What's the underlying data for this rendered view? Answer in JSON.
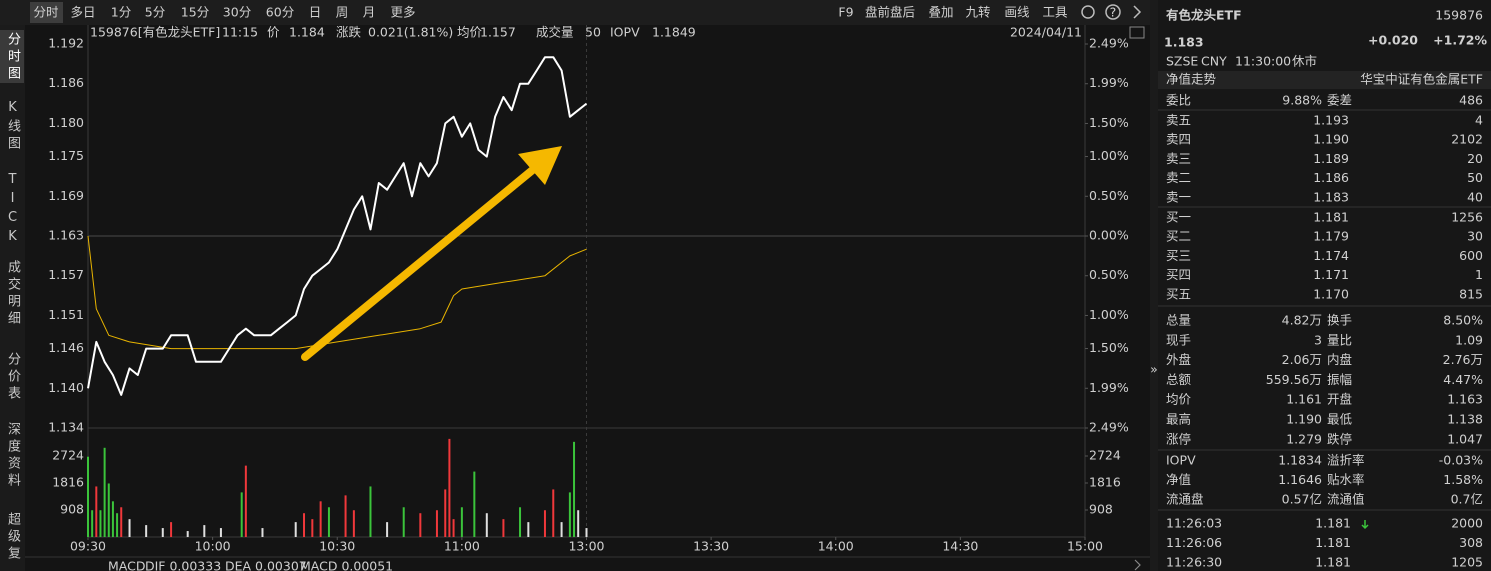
{
  "toolbar": {
    "tabs": [
      "分时",
      "多日",
      "1分",
      "5分",
      "15分",
      "30分",
      "60分",
      "日",
      "周",
      "月",
      "更多"
    ],
    "tools": [
      "F9",
      "盘前盘后",
      "叠加",
      "九转",
      "画线",
      "工具"
    ]
  },
  "sidebar": [
    "分时图",
    "K线图",
    "TICK",
    "成交明细",
    "分价表",
    "深度资料",
    "超级复"
  ],
  "chart": {
    "header": [
      {
        "text": "159876[有色龙头ETF]",
        "color": "#d0d0d0"
      },
      {
        "text": "11:15",
        "color": "#4fc3f7"
      },
      {
        "text": "价",
        "color": "#d0d0d0"
      },
      {
        "text": "1.184",
        "color": "#f0383b"
      },
      {
        "text": "涨跌",
        "color": "#d0d0d0"
      },
      {
        "text": "0.021(1.81%)",
        "color": "#f0383b"
      },
      {
        "text": "均价",
        "color": "#d0d0d0"
      },
      {
        "text": "1.157",
        "color": "#3bc43b"
      },
      {
        "text": "成交量",
        "color": "#d0d0d0"
      },
      {
        "text": "50",
        "color": "#d0d0d0"
      },
      {
        "text": "IOPV",
        "color": "#d0d0d0"
      },
      {
        "text": "1.1849",
        "color": "#f0383b"
      }
    ],
    "date": "2024/04/11",
    "ylim": [
      1.134,
      1.192
    ],
    "yticks": [
      1.192,
      1.186,
      1.18,
      1.175,
      1.169,
      1.163,
      1.157,
      1.151,
      1.146,
      1.14,
      1.134
    ],
    "yticks_labels": [
      "1.192",
      "1.186",
      "1.180",
      "1.175",
      "1.169",
      "1.163",
      "1.157",
      "1.151",
      "1.146",
      "1.140",
      "1.134"
    ],
    "pct_labels": [
      {
        "label": "2.49%",
        "color": "#f0383b"
      },
      {
        "label": "1.99%",
        "color": "#f0383b"
      },
      {
        "label": "1.50%",
        "color": "#f0383b"
      },
      {
        "label": "1.00%",
        "color": "#f0383b"
      },
      {
        "label": "0.50%",
        "color": "#f0383b"
      },
      {
        "label": "0.00%",
        "color": "#b8b8b8"
      },
      {
        "label": "0.50%",
        "color": "#3bc43b"
      },
      {
        "label": "1.00%",
        "color": "#3bc43b"
      },
      {
        "label": "1.50%",
        "color": "#3bc43b"
      },
      {
        "label": "1.99%",
        "color": "#3bc43b"
      },
      {
        "label": "2.49%",
        "color": "#3bc43b"
      }
    ],
    "xlim": [
      0,
      240
    ],
    "xticks": [
      {
        "value": 0,
        "label": "09:30"
      },
      {
        "value": 30,
        "label": "10:00"
      },
      {
        "value": 60,
        "label": "10:30"
      },
      {
        "value": 90,
        "label": "11:00"
      },
      {
        "value": 120,
        "label": "13:00"
      },
      {
        "value": 150,
        "label": "13:30"
      },
      {
        "value": 180,
        "label": "14:00"
      },
      {
        "value": 210,
        "label": "14:30"
      },
      {
        "value": 240,
        "label": "15:00"
      }
    ],
    "price_line": {
      "color": "#ffffff",
      "x": [
        0,
        2,
        4,
        6,
        8,
        10,
        12,
        14,
        16,
        18,
        20,
        22,
        24,
        26,
        28,
        30,
        32,
        34,
        36,
        38,
        40,
        42,
        44,
        46,
        48,
        50,
        52,
        54,
        56,
        58,
        60,
        62,
        64,
        66,
        68,
        70,
        72,
        74,
        76,
        78,
        80,
        82,
        84,
        86,
        88,
        90,
        92,
        94,
        96,
        98,
        100,
        102,
        104,
        106,
        108,
        110,
        112,
        114,
        116,
        118,
        120
      ],
      "values": [
        1.14,
        1.147,
        1.144,
        1.142,
        1.139,
        1.143,
        1.142,
        1.146,
        1.146,
        1.146,
        1.148,
        1.148,
        1.148,
        1.144,
        1.144,
        1.144,
        1.144,
        1.146,
        1.148,
        1.149,
        1.148,
        1.148,
        1.148,
        1.149,
        1.15,
        1.151,
        1.155,
        1.157,
        1.158,
        1.159,
        1.161,
        1.164,
        1.167,
        1.169,
        1.164,
        1.171,
        1.17,
        1.172,
        1.174,
        1.169,
        1.174,
        1.172,
        1.174,
        1.18,
        1.181,
        1.178,
        1.18,
        1.176,
        1.175,
        1.181,
        1.184,
        1.182,
        1.186,
        1.186,
        1.188,
        1.19,
        1.19,
        1.188,
        1.181,
        1.182,
        1.183
      ]
    },
    "avg_line": {
      "color": "#e8b400",
      "x": [
        0,
        2,
        5,
        10,
        20,
        30,
        40,
        50,
        60,
        70,
        80,
        85,
        88,
        90,
        100,
        110,
        116,
        120
      ],
      "values": [
        1.163,
        1.152,
        1.148,
        1.147,
        1.146,
        1.146,
        1.146,
        1.146,
        1.147,
        1.148,
        1.149,
        1.15,
        1.154,
        1.155,
        1.156,
        1.157,
        1.16,
        1.161
      ]
    },
    "volume": {
      "ylim": [
        0,
        3632
      ],
      "yticks": [
        908,
        1816,
        2724
      ],
      "x": [
        0,
        1,
        2,
        3,
        4,
        5,
        6,
        7,
        8,
        10,
        14,
        18,
        20,
        24,
        28,
        32,
        37,
        38,
        42,
        50,
        52,
        54,
        56,
        58,
        62,
        64,
        68,
        72,
        76,
        80,
        84,
        86,
        87,
        88,
        90,
        93,
        96,
        100,
        104,
        106,
        110,
        112,
        114,
        116,
        117,
        118,
        120
      ],
      "values": [
        2700,
        900,
        1700,
        900,
        3000,
        1800,
        1200,
        800,
        1000,
        600,
        400,
        300,
        500,
        200,
        400,
        300,
        1500,
        2400,
        300,
        500,
        800,
        600,
        1200,
        1000,
        1400,
        900,
        1700,
        500,
        1000,
        800,
        900,
        1600,
        3300,
        600,
        1000,
        2200,
        800,
        600,
        1000,
        500,
        900,
        1600,
        500,
        1500,
        3200,
        900,
        300
      ],
      "colors": [
        "#3bc43b",
        "#3bc43b",
        "#f0383b",
        "#3bc43b",
        "#3bc43b",
        "#3bc43b",
        "#3bc43b",
        "#3bc43b",
        "#f0383b",
        "#e0e0e0",
        "#e0e0e0",
        "#e0e0e0",
        "#f0383b",
        "#e0e0e0",
        "#e0e0e0",
        "#e0e0e0",
        "#3bc43b",
        "#f0383b",
        "#e0e0e0",
        "#e0e0e0",
        "#f0383b",
        "#f0383b",
        "#f0383b",
        "#3bc43b",
        "#f0383b",
        "#f0383b",
        "#3bc43b",
        "#e0e0e0",
        "#3bc43b",
        "#f0383b",
        "#f0383b",
        "#f0383b",
        "#f0383b",
        "#f0383b",
        "#3bc43b",
        "#3bc43b",
        "#e0e0e0",
        "#f0383b",
        "#3bc43b",
        "#e0e0e0",
        "#f0383b",
        "#f0383b",
        "#e0e0e0",
        "#3bc43b",
        "#3bc43b",
        "#e0e0e0",
        "#e0e0e0"
      ]
    },
    "macd": [
      {
        "text": "MACD",
        "color": "#d0d0d0"
      },
      {
        "text": "DIF 0.00333",
        "color": "#d0d0d0"
      },
      {
        "text": "DEA 0.00307",
        "color": "#e8b400"
      },
      {
        "text": "MACD 0.00051",
        "color": "#e060c0"
      }
    ]
  },
  "quote": {
    "name": "有色龙头ETF",
    "code": "159876",
    "price": "1.183",
    "change": "+0.020",
    "change_pct": "+1.72%",
    "meta": [
      "SZSE",
      "CNY",
      "11:30:00",
      "休市"
    ],
    "nav_title": "净值走势",
    "fund": "华宝中证有色金属ETF",
    "ratio": [
      "委比",
      "9.88%",
      "委差",
      "486"
    ],
    "asks": [
      [
        "卖五",
        "1.193",
        "4"
      ],
      [
        "卖四",
        "1.190",
        "2102"
      ],
      [
        "卖三",
        "1.189",
        "20"
      ],
      [
        "卖二",
        "1.186",
        "50"
      ],
      [
        "卖一",
        "1.183",
        "40"
      ]
    ],
    "bids": [
      [
        "买一",
        "1.181",
        "1256"
      ],
      [
        "买二",
        "1.179",
        "30"
      ],
      [
        "买三",
        "1.174",
        "600"
      ],
      [
        "买四",
        "1.171",
        "1"
      ],
      [
        "买五",
        "1.170",
        "815"
      ]
    ],
    "stats": [
      [
        "总量",
        "4.82万",
        "换手",
        "8.50%"
      ],
      [
        "现手",
        "3",
        "量比",
        "1.09"
      ],
      [
        "外盘",
        "2.06万",
        "内盘",
        "2.76万"
      ],
      [
        "总额",
        "559.56万",
        "振幅",
        "4.47%"
      ],
      [
        "均价",
        "1.161",
        "开盘",
        "1.163"
      ],
      [
        "最高",
        "1.190",
        "最低",
        "1.138"
      ],
      [
        "涨停",
        "1.279",
        "跌停",
        "1.047"
      ]
    ],
    "stat_colors": [
      [
        "#d8d8d8",
        "#d8d8d8"
      ],
      [
        "#d8d8d8",
        "#d8d8d8"
      ],
      [
        "#f0383b",
        "#3bc43b"
      ],
      [
        "#d8d8d8",
        "#d8d8d8"
      ],
      [
        "#3bc43b",
        "#d8d8d8"
      ],
      [
        "#f0383b",
        "#3bc43b"
      ],
      [
        "#f0383b",
        "#3bc43b"
      ]
    ],
    "iopv": [
      [
        "IOPV",
        "1.1834",
        "溢折率",
        "-0.03%"
      ],
      [
        "净值",
        "1.1646",
        "贴水率",
        "1.58%"
      ],
      [
        "流通盘",
        "0.57亿",
        "流通值",
        "0.7亿"
      ]
    ],
    "iopv_colors": [
      [
        "#d8d8d8",
        "#3bc43b"
      ],
      [
        "#f0383b",
        "#f0383b"
      ],
      [
        "#d8d8d8",
        "#d8d8d8"
      ]
    ],
    "ticks": [
      [
        "11:26:03",
        "1.181",
        "2000"
      ],
      [
        "11:26:06",
        "1.181",
        "308"
      ],
      [
        "11:26:30",
        "1.181",
        "1205"
      ]
    ],
    "tick_colors": [
      "#3bc43b",
      "#f0383b",
      "#f0383b"
    ]
  }
}
